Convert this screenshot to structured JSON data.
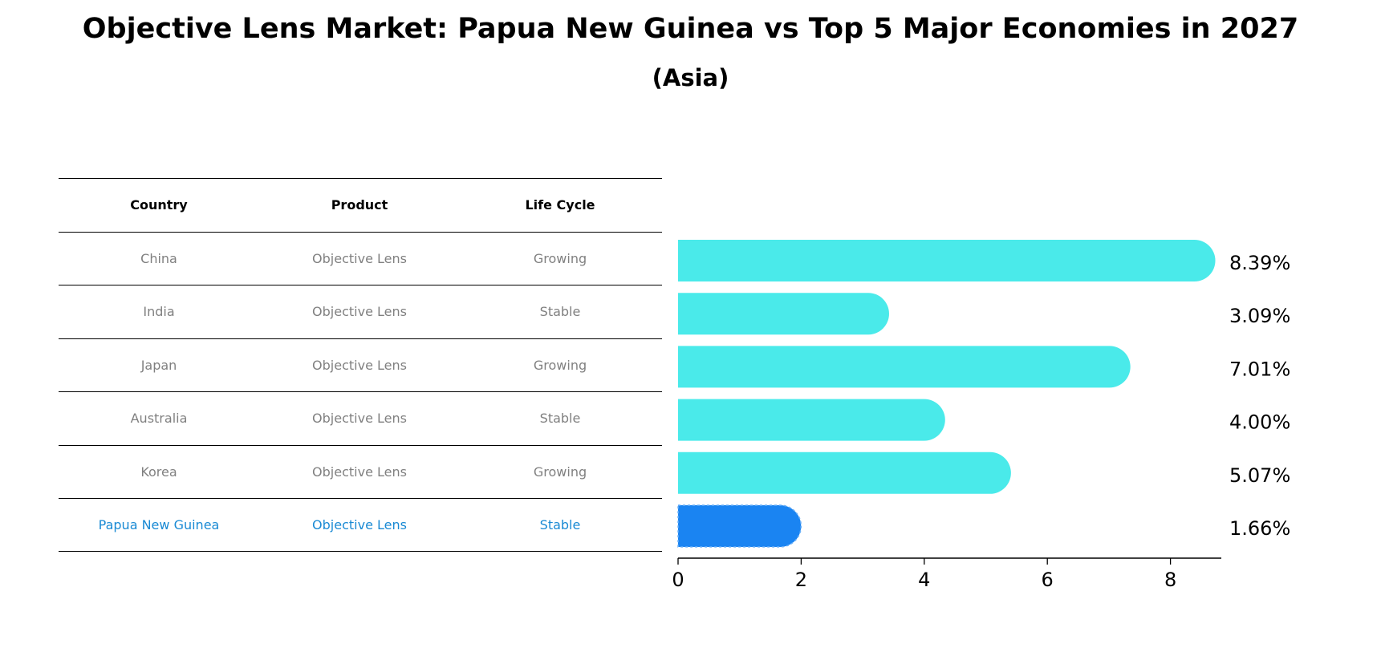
{
  "title": "Objective Lens Market: Papua New Guinea vs Top 5 Major Economies in 2027",
  "subtitle": "(Asia)",
  "table": {
    "headers": [
      "Country",
      "Product",
      "Life Cycle"
    ],
    "rows": [
      {
        "country": "China",
        "product": "Objective Lens",
        "life_cycle": "Growing"
      },
      {
        "country": "India",
        "product": "Objective Lens",
        "life_cycle": "Stable"
      },
      {
        "country": "Japan",
        "product": "Objective Lens",
        "life_cycle": "Growing"
      },
      {
        "country": "Australia",
        "product": "Objective Lens",
        "life_cycle": "Stable"
      },
      {
        "country": "Korea",
        "product": "Objective Lens",
        "life_cycle": "Growing"
      },
      {
        "country": "Papua New Guinea",
        "product": "Objective Lens",
        "life_cycle": "Stable"
      }
    ]
  },
  "colors": {
    "bar": "#4aeaea",
    "highlight_bar": "#1a84f2",
    "highlight_text": "#1a8ad4",
    "muted_text": "#808080"
  },
  "chart_data": {
    "type": "bar",
    "orientation": "horizontal",
    "categories": [
      "China",
      "India",
      "Japan",
      "Australia",
      "Korea",
      "Papua New Guinea"
    ],
    "values": [
      8.39,
      3.09,
      7.01,
      4.0,
      5.07,
      1.66
    ],
    "value_labels": [
      "8.39%",
      "3.09%",
      "7.01%",
      "4.00%",
      "5.07%",
      "1.66%"
    ],
    "highlight": "Papua New Guinea",
    "xlim": [
      0,
      8.8
    ],
    "xticks": [
      0,
      2,
      4,
      6,
      8
    ],
    "xlabel": "",
    "ylabel": "",
    "grid": false
  }
}
